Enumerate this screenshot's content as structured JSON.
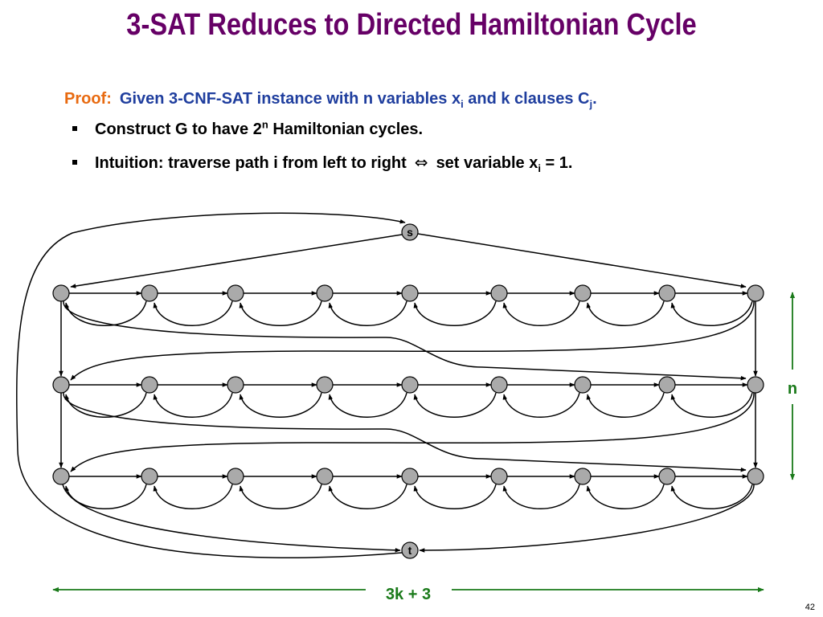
{
  "slide": {
    "title": "3-SAT Reduces to Directed Hamiltonian Cycle",
    "proof_label": "Proof:",
    "proof_text_1": "Given 3-CNF-SAT instance with n variables x",
    "proof_sub_i": "i",
    "proof_text_2": " and k clauses C",
    "proof_sub_j": "j",
    "proof_text_3": ".",
    "bullet1_text_1": "Construct G to have 2",
    "bullet1_sup": "n",
    "bullet1_text_2": " Hamiltonian cycles.",
    "bullet2_text_1": "Intuition:  traverse path i from left to right",
    "bullet2_iff": "⇔",
    "bullet2_text_2": "set variable x",
    "bullet2_sub": "i",
    "bullet2_text_3": " = 1.",
    "page_number": "42"
  },
  "graph": {
    "source_label": "s",
    "sink_label": "t",
    "n_label": "n",
    "width_label": "3k + 3",
    "rows": 3,
    "nodes_per_row": 9,
    "colors": {
      "node_fill": "#aaaaaa",
      "edge": "#000000",
      "dimension": "#1a7a1a",
      "dimension_text": "#1a7a1a"
    }
  }
}
